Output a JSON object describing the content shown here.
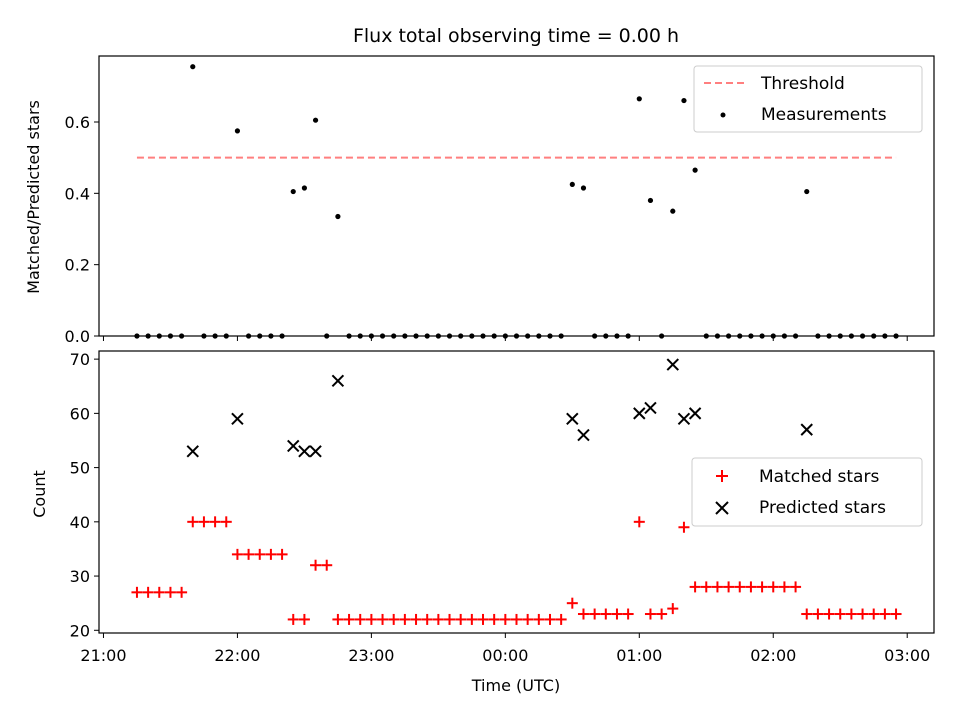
{
  "chart_data": [
    {
      "type": "scatter",
      "title": "Flux total observing time = 0.00 h",
      "ylabel": "Matched/Predicted stars",
      "xlabel": "",
      "x_unit": "minutes relative to 00:00 UTC",
      "xlim": [
        -182,
        192
      ],
      "ylim": [
        0,
        0.785
      ],
      "yticks": [
        0.0,
        0.2,
        0.4,
        0.6
      ],
      "ytick_labels": [
        "0.0",
        "0.2",
        "0.4",
        "0.6"
      ],
      "legend": {
        "position": "top-right",
        "entries": [
          "Threshold",
          "Measurements"
        ]
      },
      "threshold": {
        "name": "Threshold",
        "y": 0.5,
        "x_range": [
          -165,
          175
        ],
        "color": "#ff7f7f",
        "style": "dashed"
      },
      "series": [
        {
          "name": "Measurements",
          "color": "#000000",
          "marker": "dot",
          "x": [
            -165,
            -160,
            -155,
            -150,
            -145,
            -140,
            -135,
            -130,
            -125,
            -120,
            -115,
            -110,
            -105,
            -100,
            -95,
            -90,
            -85,
            -80,
            -75,
            -70,
            -65,
            -60,
            -55,
            -50,
            -45,
            -40,
            -35,
            -30,
            -25,
            -20,
            -15,
            -10,
            -5,
            0,
            5,
            10,
            15,
            20,
            25,
            30,
            35,
            40,
            45,
            50,
            55,
            60,
            65,
            70,
            75,
            80,
            85,
            90,
            95,
            100,
            105,
            110,
            115,
            120,
            125,
            130,
            135,
            140,
            145,
            150,
            155,
            160,
            165,
            170,
            175
          ],
          "y": [
            0,
            0,
            0,
            0,
            0,
            0.755,
            0,
            0,
            0,
            0.575,
            0,
            0,
            0,
            0,
            0.405,
            0.415,
            0.605,
            0,
            0.335,
            0,
            0,
            0,
            0,
            0,
            0,
            0,
            0,
            0,
            0,
            0,
            0,
            0,
            0,
            0,
            0,
            0,
            0,
            0,
            0,
            0.425,
            0.415,
            0,
            0,
            0,
            0,
            0.665,
            0.38,
            0,
            0.35,
            0.66,
            0.465,
            0,
            0,
            0,
            0,
            0,
            0,
            0,
            0,
            0,
            0.405,
            0,
            0,
            0,
            0,
            0,
            0,
            0,
            0
          ]
        }
      ]
    },
    {
      "type": "scatter",
      "title": "",
      "ylabel": "Count",
      "xlabel": "Time (UTC)",
      "x_unit": "minutes relative to 00:00 UTC",
      "xlim": [
        -182,
        192
      ],
      "ylim": [
        19.5,
        71.5
      ],
      "yticks": [
        20,
        30,
        40,
        50,
        60,
        70
      ],
      "ytick_labels": [
        "20",
        "30",
        "40",
        "50",
        "60",
        "70"
      ],
      "xticks": [
        -180,
        -120,
        -60,
        0,
        60,
        120,
        180
      ],
      "xtick_labels": [
        "21:00",
        "22:00",
        "23:00",
        "00:00",
        "01:00",
        "02:00",
        "03:00"
      ],
      "legend": {
        "position": "center-right",
        "entries": [
          "Matched stars",
          "Predicted stars"
        ]
      },
      "series": [
        {
          "name": "Matched stars",
          "color": "#ff0000",
          "marker": "plus",
          "x": [
            -165,
            -160,
            -155,
            -150,
            -145,
            -140,
            -135,
            -130,
            -125,
            -120,
            -115,
            -110,
            -105,
            -100,
            -95,
            -90,
            -85,
            -80,
            -75,
            -70,
            -65,
            -60,
            -55,
            -50,
            -45,
            -40,
            -35,
            -30,
            -25,
            -20,
            -15,
            -10,
            -5,
            0,
            5,
            10,
            15,
            20,
            25,
            30,
            35,
            40,
            45,
            50,
            55,
            60,
            65,
            70,
            75,
            80,
            85,
            90,
            95,
            100,
            105,
            110,
            115,
            120,
            125,
            130,
            135,
            140,
            145,
            150,
            155,
            160,
            165,
            170,
            175
          ],
          "y": [
            27,
            27,
            27,
            27,
            27,
            40,
            40,
            40,
            40,
            34,
            34,
            34,
            34,
            34,
            22,
            22,
            32,
            32,
            22,
            22,
            22,
            22,
            22,
            22,
            22,
            22,
            22,
            22,
            22,
            22,
            22,
            22,
            22,
            22,
            22,
            22,
            22,
            22,
            22,
            25,
            23,
            23,
            23,
            23,
            23,
            40,
            23,
            23,
            24,
            39,
            28,
            28,
            28,
            28,
            28,
            28,
            28,
            28,
            28,
            28,
            23,
            23,
            23,
            23,
            23,
            23,
            23,
            23,
            23
          ]
        },
        {
          "name": "Predicted stars",
          "color": "#000000",
          "marker": "x",
          "x": [
            -140,
            -120,
            -95,
            -90,
            -85,
            -75,
            30,
            35,
            60,
            65,
            75,
            80,
            85,
            135
          ],
          "y": [
            53,
            59,
            54,
            53,
            53,
            66,
            59,
            56,
            60,
            61,
            69,
            59,
            60,
            57
          ]
        }
      ]
    }
  ]
}
